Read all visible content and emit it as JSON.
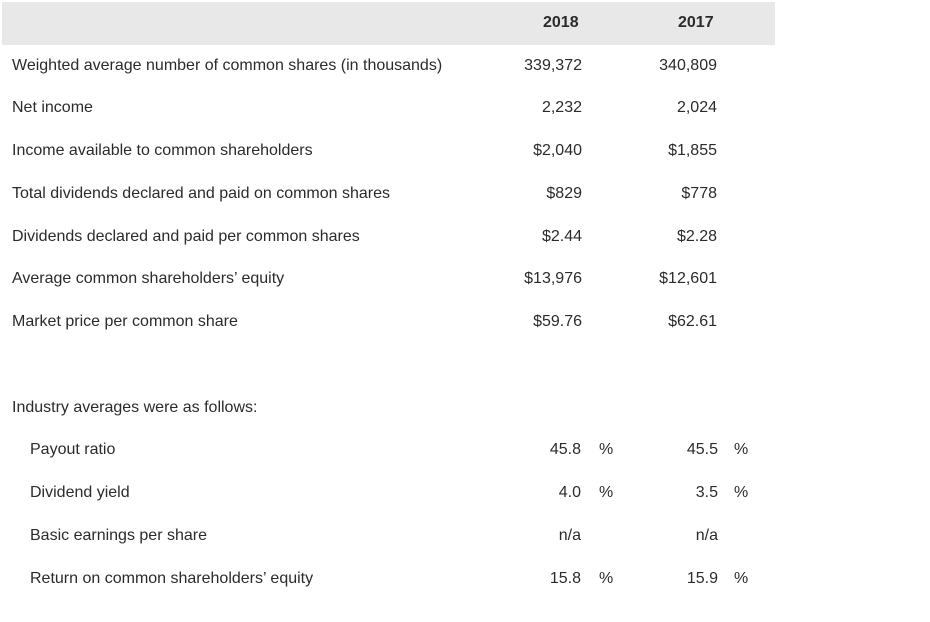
{
  "header": {
    "col_2018": "2018",
    "col_2017": "2017"
  },
  "company_rows": [
    {
      "label": "Weighted average number of common shares (in thousands)",
      "v2018": "339,372",
      "v2017": "340,809"
    },
    {
      "label": "Net income",
      "v2018": "2,232",
      "v2017": "2,024"
    },
    {
      "label": "Income available to common shareholders",
      "v2018": "$2,040",
      "v2017": "$1,855"
    },
    {
      "label": "Total dividends declared and paid on common shares",
      "v2018": "$829",
      "v2017": "$778"
    },
    {
      "label": "Dividends declared and paid per common shares",
      "v2018": "$2.44",
      "v2017": "$2.28"
    },
    {
      "label": "Average common shareholders’ equity",
      "v2018": "$13,976",
      "v2017": "$12,601"
    },
    {
      "label": "Market price per common share",
      "v2018": "$59.76",
      "v2017": "$62.61"
    }
  ],
  "industry": {
    "heading": "Industry averages were as follows:",
    "rows": [
      {
        "label": "Payout ratio",
        "v2018": "45.8",
        "p2018": "%",
        "v2017": "45.5",
        "p2017": "%"
      },
      {
        "label": "Dividend yield",
        "v2018": "4.0",
        "p2018": "%",
        "v2017": "3.5",
        "p2017": "%"
      },
      {
        "label": "Basic earnings per share",
        "v2018": "n/a",
        "p2018": "",
        "v2017": "n/a",
        "p2017": ""
      },
      {
        "label": "Return on common shareholders’ equity",
        "v2018": "15.8",
        "p2018": "%",
        "v2017": "15.9",
        "p2017": "%"
      }
    ]
  }
}
